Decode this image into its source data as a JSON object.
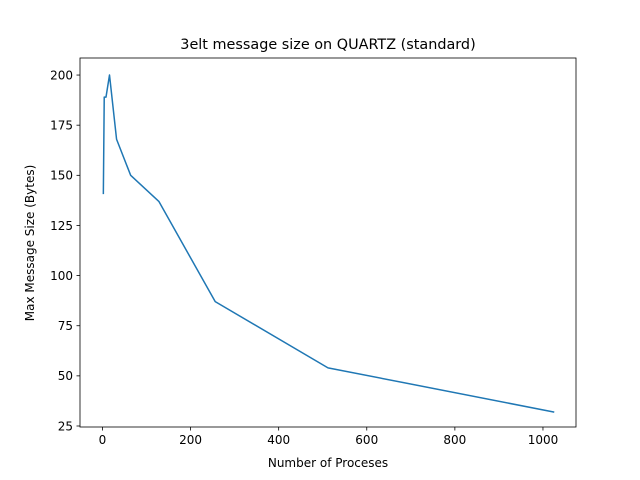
{
  "chart_data": {
    "type": "line",
    "title": "3elt message size on QUARTZ (standard)",
    "xlabel": "Number of Proceses",
    "ylabel": "Max Message Size (Bytes)",
    "xlim": [
      -51,
      1075
    ],
    "ylim": [
      24.5,
      208.5
    ],
    "xticks": [
      0,
      200,
      400,
      600,
      800,
      1000
    ],
    "yticks": [
      25,
      50,
      75,
      100,
      125,
      150,
      175,
      200
    ],
    "grid": false,
    "legend": "none",
    "series": [
      {
        "color": "#1f77b4",
        "x": [
          2,
          4,
          8,
          16,
          32,
          64,
          128,
          256,
          512,
          1024
        ],
        "y": [
          141,
          189,
          189,
          200,
          168,
          150,
          137,
          87,
          54,
          32
        ]
      }
    ]
  }
}
